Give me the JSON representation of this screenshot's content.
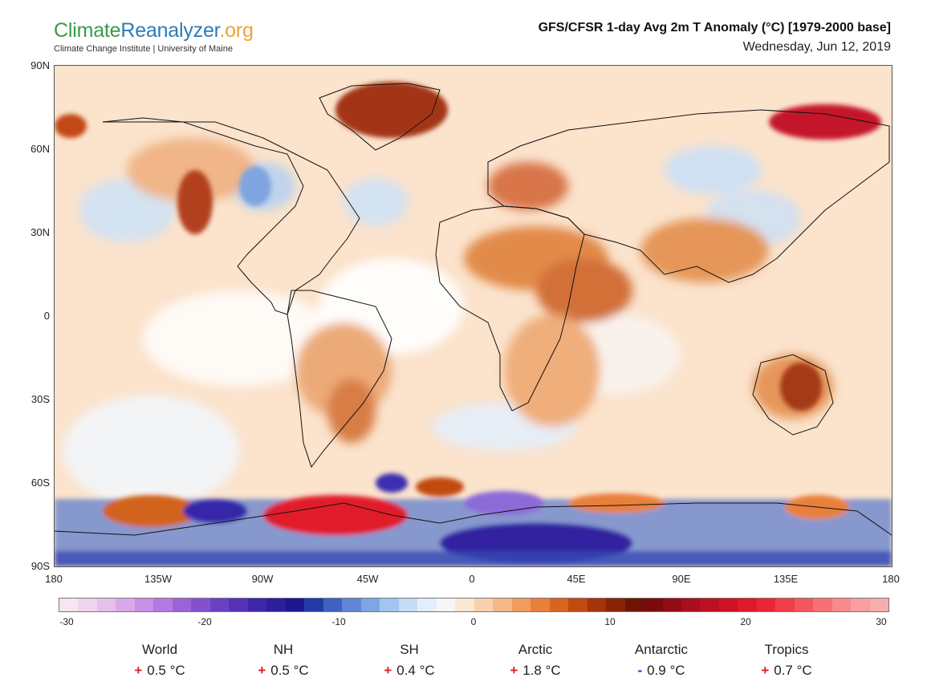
{
  "brand": {
    "name_part1": "Climate",
    "name_part2": "Reanalyzer",
    "name_part3": ".org",
    "subtitle": "Climate Change Institute | University of Maine"
  },
  "header": {
    "title": "GFS/CFSR 1-day Avg 2m T Anomaly (°C) [1979-2000 base]",
    "date": "Wednesday, Jun 12, 2019"
  },
  "map": {
    "lat_labels": [
      "90N",
      "60N",
      "30N",
      "0",
      "30S",
      "60S",
      "90S"
    ],
    "lon_labels": [
      "180",
      "135W",
      "90W",
      "45W",
      "0",
      "45E",
      "90E",
      "135E",
      "180"
    ]
  },
  "colorbar": {
    "labels": [
      "-30",
      "-20",
      "-10",
      "0",
      "10",
      "20",
      "30"
    ],
    "colors": [
      "#f7e6f0",
      "#f0d4ee",
      "#e6c0ec",
      "#d9a8ea",
      "#c890e6",
      "#b478e2",
      "#9c62da",
      "#8450d0",
      "#6c40c4",
      "#5632b8",
      "#4026aa",
      "#2c1e9c",
      "#1c1690",
      "#243aa8",
      "#3f62c2",
      "#5d86d6",
      "#7ea6e4",
      "#a2c4ee",
      "#c4dcf5",
      "#e2eefa",
      "#f6f6f6",
      "#fbe8d2",
      "#f8d2ae",
      "#f5b886",
      "#f09c5e",
      "#e8803a",
      "#d8641e",
      "#c24a10",
      "#a6340a",
      "#8a2206",
      "#6e1404",
      "#7a0a0c",
      "#920c18",
      "#a80e1e",
      "#bc1022",
      "#cc1426",
      "#dc1a2c",
      "#e82636",
      "#f03e4a",
      "#f4565e",
      "#f67074",
      "#f88a8c",
      "#fa9ea2",
      "#f8acac"
    ]
  },
  "stats": [
    {
      "name": "World",
      "sign": "+",
      "value": "0.5 °C",
      "sign_color": "#e0202a"
    },
    {
      "name": "NH",
      "sign": "+",
      "value": "0.5 °C",
      "sign_color": "#e0202a"
    },
    {
      "name": "SH",
      "sign": "+",
      "value": "0.4 °C",
      "sign_color": "#e0202a"
    },
    {
      "name": "Arctic",
      "sign": "+",
      "value": "1.8 °C",
      "sign_color": "#e0202a"
    },
    {
      "name": "Antarctic",
      "sign": "-",
      "value": "0.9 °C",
      "sign_color": "#2a2adc"
    },
    {
      "name": "Tropics",
      "sign": "+",
      "value": "0.7 °C",
      "sign_color": "#e0202a"
    }
  ]
}
